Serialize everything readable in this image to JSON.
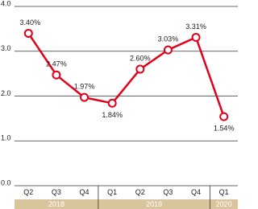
{
  "chart_data": {
    "type": "line",
    "groups": [
      {
        "name": "2018",
        "categories": [
          "Q2",
          "Q3",
          "Q4"
        ]
      },
      {
        "name": "2019",
        "categories": [
          "Q1",
          "Q2",
          "Q3",
          "Q4"
        ]
      },
      {
        "name": "2020",
        "categories": [
          "Q1"
        ]
      }
    ],
    "values": [
      3.4,
      2.47,
      1.97,
      1.84,
      2.6,
      3.03,
      3.31,
      1.54
    ],
    "value_labels": [
      "3.40%",
      "2.47%",
      "1.97%",
      "1.84%",
      "2.60%",
      "3.03%",
      "3.31%",
      "1.54%"
    ],
    "color": "#e2001a",
    "ylim": [
      0,
      4
    ],
    "yticks": [
      {
        "value": 0,
        "label": "0.0"
      },
      {
        "value": 1,
        "label": "1.0"
      },
      {
        "value": 2,
        "label": "2.0"
      },
      {
        "value": 3,
        "label": "3.0"
      },
      {
        "value": 4,
        "label": "4.0"
      }
    ],
    "grid": true
  }
}
